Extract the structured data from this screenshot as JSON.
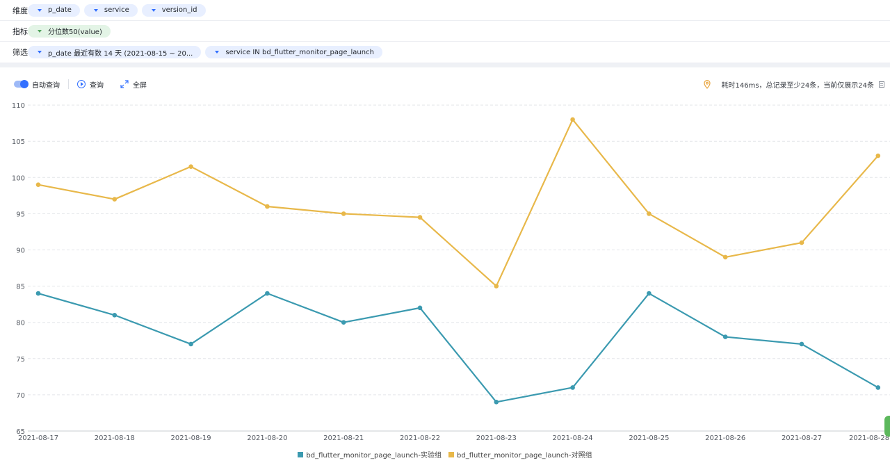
{
  "dimensions": {
    "label": "维度",
    "items": [
      "p_date",
      "service",
      "version_id"
    ]
  },
  "metrics": {
    "label": "指标",
    "items": [
      "分位数50(value)"
    ]
  },
  "filters": {
    "label": "筛选",
    "items": [
      "p_date 最近有数 14 天 (2021-08-15 ~ 20...",
      "service IN bd_flutter_monitor_page_launch"
    ]
  },
  "toolbar": {
    "auto_query": "自动查询",
    "query": "查询",
    "fullscreen": "全屏",
    "status": "耗时146ms，总记录至少24条，当前仅展示24条"
  },
  "colors": {
    "accent": "#3370ff",
    "series_teal": "#3b9ab0",
    "series_gold": "#e8b84a"
  },
  "chart_data": {
    "type": "line",
    "categories": [
      "2021-08-17",
      "2021-08-18",
      "2021-08-19",
      "2021-08-20",
      "2021-08-21",
      "2021-08-22",
      "2021-08-23",
      "2021-08-24",
      "2021-08-25",
      "2021-08-26",
      "2021-08-27",
      "2021-08-28"
    ],
    "yticks": [
      65,
      70,
      75,
      80,
      85,
      90,
      95,
      100,
      105,
      110
    ],
    "ylim": [
      65,
      111
    ],
    "grid": true,
    "legend": "bottom-center",
    "series": [
      {
        "name": "bd_flutter_monitor_page_launch-实验组",
        "color": "#3b9ab0",
        "values": [
          84,
          81,
          77,
          84,
          80,
          82,
          69,
          71,
          84,
          78,
          77,
          71
        ]
      },
      {
        "name": "bd_flutter_monitor_page_launch-对照组",
        "color": "#e8b84a",
        "values": [
          99,
          97,
          101.5,
          96,
          95,
          94.5,
          85,
          108,
          95,
          89,
          91,
          103
        ]
      }
    ]
  }
}
